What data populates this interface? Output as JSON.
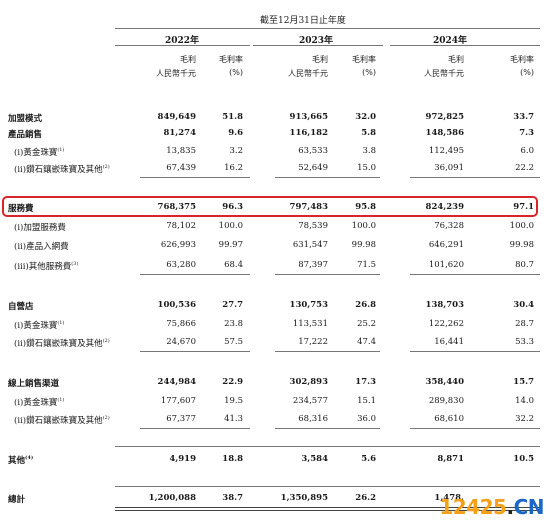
{
  "header": {
    "period": "截至12月31日止年度",
    "years": [
      "2022年",
      "2023年",
      "2024年"
    ],
    "col_profit": "毛利",
    "col_profit_unit": "人民幣千元",
    "col_margin": "毛利率",
    "col_margin_unit": "(%)"
  },
  "rows": [
    {
      "label": "加盟模式",
      "bold": true,
      "values": [
        "849,649",
        "51.8",
        "913,665",
        "32.0",
        "972,825",
        "33.7"
      ]
    },
    {
      "label": "產品銷售",
      "bold": true,
      "values": [
        "81,274",
        "9.6",
        "116,182",
        "5.8",
        "148,586",
        "7.3"
      ]
    },
    {
      "label": "(i)黃金珠寶",
      "note": "(1)",
      "values": [
        "13,835",
        "3.2",
        "63,533",
        "3.8",
        "112,495",
        "6.0"
      ]
    },
    {
      "label": "(ii)鑽石鑲嵌珠寶及其他",
      "note": "(2)",
      "values": [
        "67,439",
        "16.2",
        "52,649",
        "15.0",
        "36,091",
        "22.2"
      ]
    },
    {
      "label": "服務費",
      "bold": true,
      "values": [
        "768,375",
        "96.3",
        "797,483",
        "95.8",
        "824,239",
        "97.1"
      ]
    },
    {
      "label": "(i)加盟服務費",
      "values": [
        "78,102",
        "100.0",
        "78,539",
        "100.0",
        "76,328",
        "100.0"
      ]
    },
    {
      "label": "(ii)產品入網費",
      "values": [
        "626,993",
        "99.97",
        "631,547",
        "99.98",
        "646,291",
        "99.98"
      ]
    },
    {
      "label": "(iii)其他服務費",
      "note": "(3)",
      "values": [
        "63,280",
        "68.4",
        "87,397",
        "71.5",
        "101,620",
        "80.7"
      ]
    },
    {
      "label": "自營店",
      "bold": true,
      "values": [
        "100,536",
        "27.7",
        "130,753",
        "26.8",
        "138,703",
        "30.4"
      ]
    },
    {
      "label": "(i)黃金珠寶",
      "note": "(1)",
      "values": [
        "75,866",
        "23.8",
        "113,531",
        "25.2",
        "122,262",
        "28.7"
      ]
    },
    {
      "label": "(ii)鑽石鑲嵌珠寶及其他",
      "note": "(2)",
      "values": [
        "24,670",
        "57.5",
        "17,222",
        "47.4",
        "16,441",
        "53.3"
      ]
    },
    {
      "label": "線上銷售渠道",
      "bold": true,
      "values": [
        "244,984",
        "22.9",
        "302,893",
        "17.3",
        "358,440",
        "15.7"
      ]
    },
    {
      "label": "(i)黃金珠寶",
      "note": "(1)",
      "values": [
        "177,607",
        "19.5",
        "234,577",
        "15.1",
        "289,830",
        "14.0"
      ]
    },
    {
      "label": "(ii)鑽石鑲嵌珠寶及其他",
      "note": "(2)",
      "values": [
        "67,377",
        "41.3",
        "68,316",
        "36.0",
        "68,610",
        "32.2"
      ]
    },
    {
      "label": "其他",
      "bold": true,
      "note": "(4)",
      "values": [
        "4,919",
        "18.8",
        "3,584",
        "5.6",
        "8,871",
        "10.5"
      ]
    },
    {
      "label": "總計",
      "bold": true,
      "values": [
        "1,200,088",
        "38.7",
        "1,350,895",
        "26.2",
        "1,478,",
        ""
      ]
    }
  ],
  "watermark": {
    "num": "12425",
    "dot": ".",
    "cn": "CN"
  },
  "colors": {
    "highlight": "#d8252a",
    "watermark_num": "#f5a019",
    "watermark_cn": "#1b67c9"
  }
}
